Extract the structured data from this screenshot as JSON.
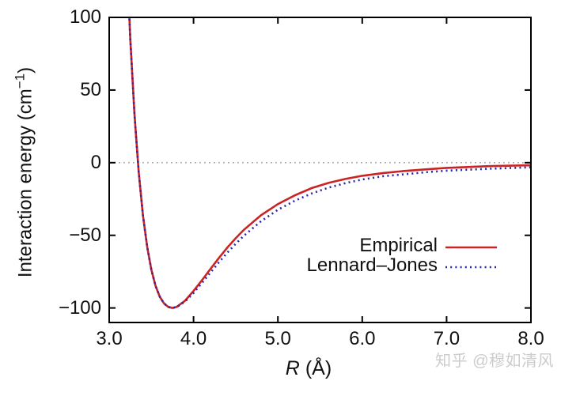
{
  "chart_data": {
    "type": "line",
    "title": "",
    "xlabel": "R (Å)",
    "ylabel": "Interaction energy (cm⁻¹)",
    "xlim": [
      3.0,
      8.0
    ],
    "ylim": [
      -110,
      100
    ],
    "grid": false,
    "zero_line": {
      "show": true,
      "color": "#999999",
      "style": "dotted"
    },
    "legend_position": "inside-right-center",
    "xticks": {
      "values": [
        3.0,
        4.0,
        5.0,
        6.0,
        7.0,
        8.0
      ],
      "labels": [
        "3.0",
        "4.0",
        "5.0",
        "6.0",
        "7.0",
        "8.0"
      ]
    },
    "yticks": {
      "values": [
        100,
        50,
        0,
        -50,
        -100
      ],
      "labels": [
        "100",
        "50",
        "0",
        "−50",
        "−100"
      ]
    },
    "x": [
      3.2,
      3.25,
      3.3,
      3.35,
      3.4,
      3.45,
      3.5,
      3.55,
      3.6,
      3.65,
      3.7,
      3.75,
      3.8,
      3.9,
      4.0,
      4.1,
      4.2,
      4.3,
      4.4,
      4.5,
      4.6,
      4.8,
      5.0,
      5.2,
      5.4,
      5.6,
      5.8,
      6.0,
      6.25,
      6.5,
      6.75,
      7.0,
      7.5,
      8.0
    ],
    "series": [
      {
        "name": "Empirical",
        "color": "#cc2222",
        "line_style": "solid",
        "values": [
          152.8,
          84.9,
          33.0,
          -6.4,
          -36.0,
          -57.9,
          -73.7,
          -84.8,
          -92.3,
          -96.9,
          -99.3,
          -100.0,
          -99.3,
          -95.0,
          -88.3,
          -80.9,
          -73.2,
          -65.6,
          -58.5,
          -52.0,
          -46.0,
          -36.2,
          -28.5,
          -22.5,
          -17.5,
          -13.9,
          -11.2,
          -9.0,
          -7.1,
          -5.7,
          -4.6,
          -3.6,
          -2.4,
          -1.8
        ]
      },
      {
        "name": "Lennard–Jones",
        "color": "#2626a8",
        "line_style": "dotted",
        "values": [
          152.8,
          84.9,
          33.0,
          -6.4,
          -36.0,
          -57.9,
          -73.7,
          -84.8,
          -92.3,
          -96.9,
          -99.3,
          -100.0,
          -99.4,
          -95.6,
          -89.7,
          -82.8,
          -75.7,
          -68.6,
          -62.0,
          -55.8,
          -50.1,
          -40.3,
          -32.4,
          -26.2,
          -21.2,
          -17.2,
          -14.1,
          -11.6,
          -9.3,
          -8.0,
          -6.6,
          -5.5,
          -4.2,
          -3.2
        ]
      }
    ],
    "annotations": {
      "minimum": {
        "x": 3.75,
        "y": -100
      }
    }
  },
  "labels": {
    "ylabel_prefix": "Interaction energy (cm",
    "ylabel_sup": "−1",
    "ylabel_suffix": ")",
    "xlabel_var": "R",
    "xlabel_rest": "(Å)"
  },
  "watermark": {
    "text": "知乎 @穆如清风",
    "color": "#cccccc"
  }
}
